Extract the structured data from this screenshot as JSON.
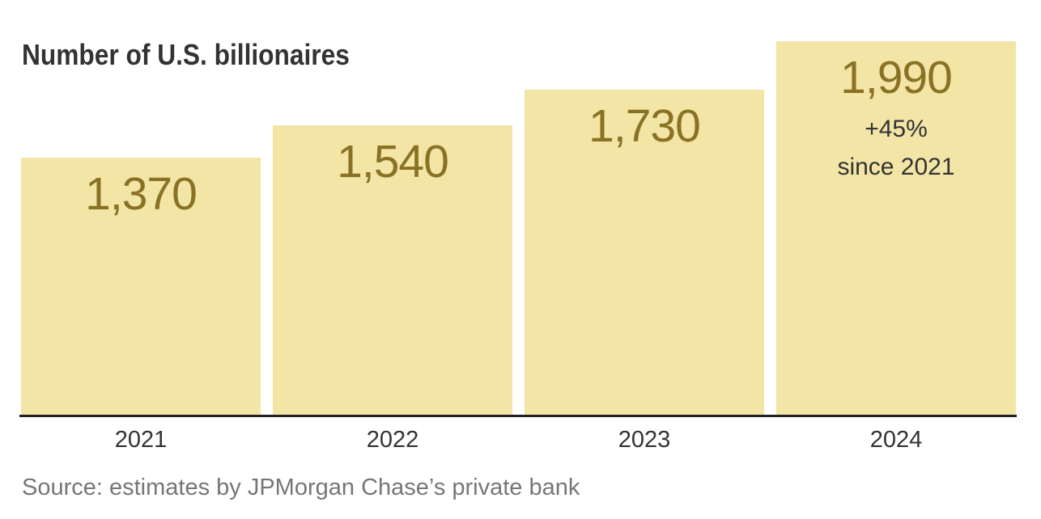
{
  "title": "Number of U.S. billionaires",
  "source": "Source: estimates by JPMorgan Chase’s private bank",
  "colors": {
    "bar_fill": "#F2E5A6",
    "value_label": "#8A7225",
    "dark_text": "#333333",
    "source_text": "#767676",
    "axis_line": "#222222",
    "background": "#FFFFFF"
  },
  "chart_data": {
    "type": "bar",
    "title": "Number of U.S. billionaires",
    "categories": [
      "2021",
      "2022",
      "2023",
      "2024"
    ],
    "values": [
      1370,
      1540,
      1730,
      1990
    ],
    "value_labels": [
      "1,370",
      "1,540",
      "1,730",
      "1,990"
    ],
    "annotation": {
      "bar": "2024",
      "lines": [
        "+45%",
        "since 2021"
      ]
    },
    "xlabel": "",
    "ylabel": "",
    "ylim": [
      0,
      1990
    ],
    "grid": false,
    "legend": false,
    "value_labels_position": "inside-top",
    "source": "Source: estimates by JPMorgan Chase’s private bank"
  }
}
